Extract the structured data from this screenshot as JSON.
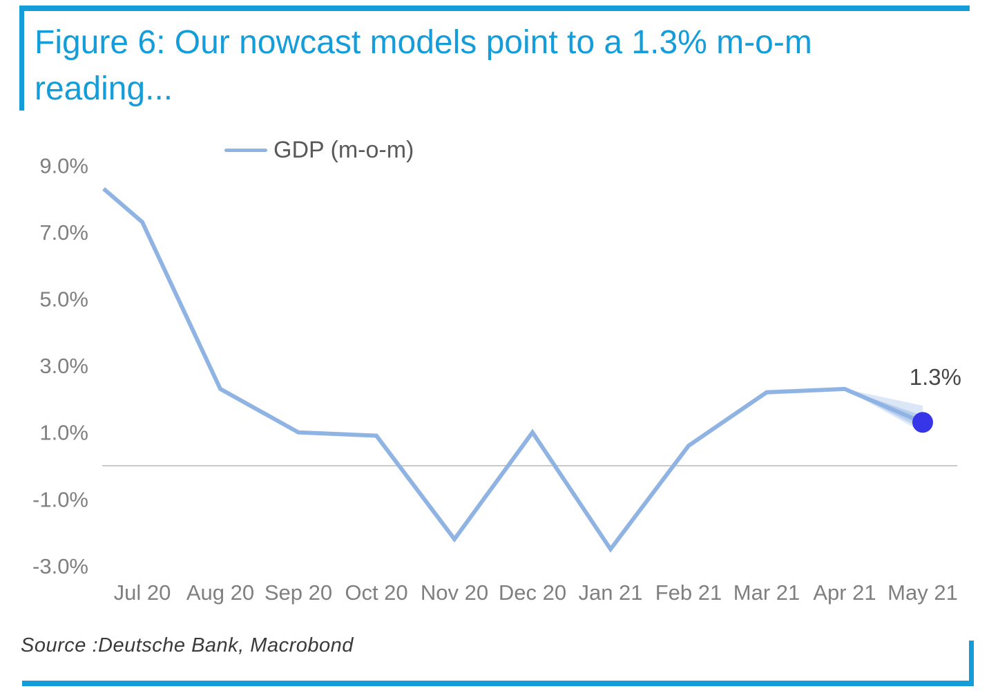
{
  "title": {
    "line1": "Figure 6: Our nowcast models point to a 1.3% m-o-m",
    "line2": "reading..."
  },
  "legend": {
    "label": "GDP (m-o-m)"
  },
  "source": "Source :Deutsche Bank, Macrobond",
  "colors": {
    "accent": "#149dd9",
    "line": "#8fb3e3",
    "dot": "#3636e8",
    "grid": "#c9c9c9",
    "axis_text": "#7f7f7f",
    "legend_text": "#595959",
    "annotation_text": "#474747",
    "source_text": "#3a3a3a"
  },
  "chart_data": {
    "type": "line",
    "title": "Figure 6: Our nowcast models point to a 1.3% m-o-m reading...",
    "categories": [
      "Jul 20",
      "Aug 20",
      "Sep 20",
      "Oct 20",
      "Nov 20",
      "Dec 20",
      "Jan 21",
      "Feb 21",
      "Mar 21",
      "Apr 21",
      "May 21"
    ],
    "series": [
      {
        "name": "GDP (m-o-m)",
        "values": [
          7.3,
          2.3,
          1.0,
          0.9,
          -2.2,
          1.0,
          -2.5,
          0.6,
          2.2,
          2.3,
          1.3
        ]
      }
    ],
    "lead_in_value_at_left_edge": 8.3,
    "y_ticks": [
      {
        "label": "9.0%",
        "value": 9
      },
      {
        "label": "7.0%",
        "value": 7
      },
      {
        "label": "5.0%",
        "value": 5
      },
      {
        "label": "3.0%",
        "value": 3
      },
      {
        "label": "1.0%",
        "value": 1
      },
      {
        "label": "-1.0%",
        "value": -1
      },
      {
        "label": "-3.0%",
        "value": -3
      }
    ],
    "ylim": [
      -3.8,
      9.8
    ],
    "grid": "zero-line-only",
    "zero_line": true,
    "legend_position": "top-left",
    "forecast_point": {
      "category": "May 21",
      "value": 1.3,
      "label": "1.3%",
      "fan_high": 1.8,
      "fan_low": 1.0,
      "fan_inner_high": 1.5,
      "fan_inner_low": 1.1
    }
  }
}
